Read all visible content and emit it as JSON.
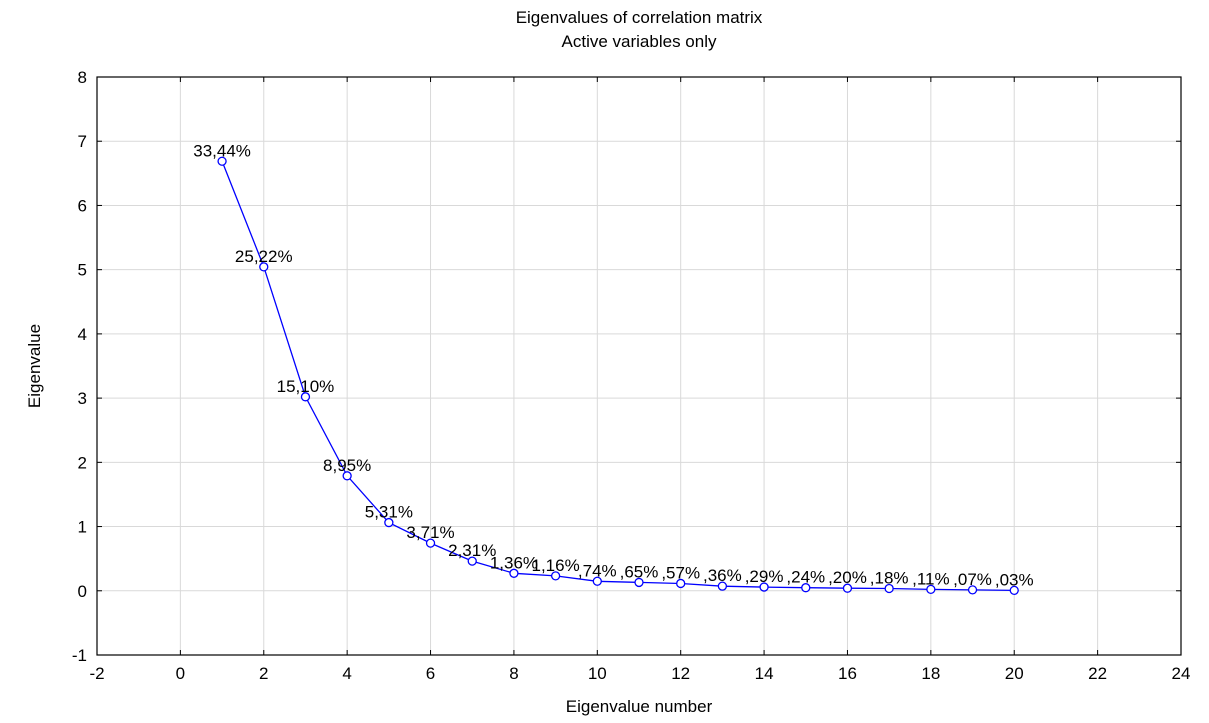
{
  "chart_data": {
    "type": "line",
    "title": "Eigenvalues of correlation matrix",
    "subtitle": "Active variables only",
    "xlabel": "Eigenvalue number",
    "ylabel": "Eigenvalue",
    "xlim": [
      -2,
      24
    ],
    "ylim": [
      -1,
      8
    ],
    "xticks": [
      -2,
      0,
      2,
      4,
      6,
      8,
      10,
      12,
      14,
      16,
      18,
      20,
      22,
      24
    ],
    "yticks": [
      -1,
      0,
      1,
      2,
      3,
      4,
      5,
      6,
      7,
      8
    ],
    "grid": true,
    "series_color": "#0000ff",
    "x": [
      1,
      2,
      3,
      4,
      5,
      6,
      7,
      8,
      9,
      10,
      11,
      12,
      13,
      14,
      15,
      16,
      17,
      18,
      19,
      20
    ],
    "y": [
      6.688,
      5.044,
      3.02,
      1.79,
      1.062,
      0.742,
      0.462,
      0.272,
      0.232,
      0.148,
      0.13,
      0.114,
      0.072,
      0.058,
      0.048,
      0.04,
      0.036,
      0.022,
      0.014,
      0.006
    ],
    "labels": [
      "33,44%",
      "25,22%",
      "15,10%",
      "8,95%",
      "5,31%",
      "3,71%",
      "2,31%",
      "1,36%",
      "1,16%",
      ",74%",
      ",65%",
      ",57%",
      ",36%",
      ",29%",
      ",24%",
      ",20%",
      ",18%",
      ",11%",
      ",07%",
      ",03%"
    ]
  }
}
